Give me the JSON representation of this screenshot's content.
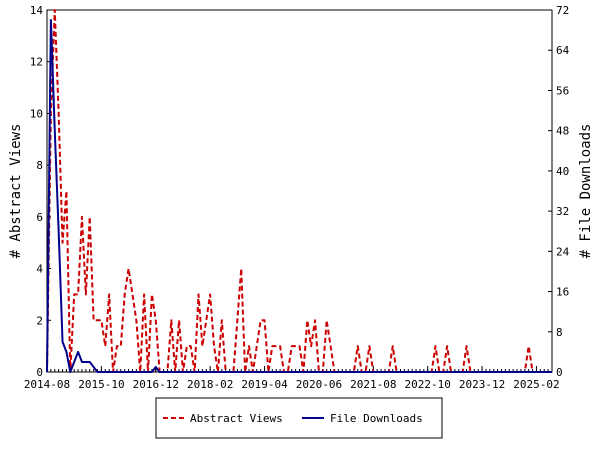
{
  "chart_data": {
    "type": "line",
    "title": "",
    "ylabel": "# Abstract Views",
    "y2label": "# File Downloads",
    "xlabel": "",
    "ylim": [
      0,
      14
    ],
    "y2lim": [
      0,
      72
    ],
    "yticks": [
      0,
      2,
      4,
      6,
      8,
      10,
      12,
      14
    ],
    "y2ticks": [
      0,
      8,
      16,
      24,
      32,
      40,
      48,
      56,
      64,
      72
    ],
    "xlim": [
      "2014-08",
      "2025-06"
    ],
    "xticks": [
      "2014-08",
      "2015-10",
      "2016-12",
      "2018-02",
      "2019-04",
      "2020-06",
      "2021-08",
      "2022-10",
      "2023-12",
      "2025-02"
    ],
    "legend_position": "bottom",
    "grid": false,
    "colors": {
      "abstract_views": "#cc0000",
      "file_downloads": "#00008b"
    },
    "series": [
      {
        "name": "Abstract Views",
        "axis": "left",
        "style": "dashed",
        "points": [
          [
            "2014-08",
            0
          ],
          [
            "2014-09",
            10
          ],
          [
            "2014-10",
            14
          ],
          [
            "2014-11",
            10
          ],
          [
            "2014-12",
            5
          ],
          [
            "2015-01",
            7
          ],
          [
            "2015-02",
            0
          ],
          [
            "2015-03",
            3
          ],
          [
            "2015-04",
            3
          ],
          [
            "2015-05",
            6
          ],
          [
            "2015-06",
            3
          ],
          [
            "2015-07",
            6
          ],
          [
            "2015-08",
            2
          ],
          [
            "2015-09",
            2
          ],
          [
            "2015-10",
            2
          ],
          [
            "2015-11",
            1
          ],
          [
            "2015-12",
            3
          ],
          [
            "2016-01",
            0
          ],
          [
            "2016-02",
            1
          ],
          [
            "2016-03",
            1
          ],
          [
            "2016-04",
            3
          ],
          [
            "2016-05",
            4
          ],
          [
            "2016-06",
            3
          ],
          [
            "2016-07",
            2
          ],
          [
            "2016-08",
            0
          ],
          [
            "2016-09",
            3
          ],
          [
            "2016-10",
            0
          ],
          [
            "2016-11",
            3
          ],
          [
            "2016-12",
            2
          ],
          [
            "2017-01",
            0
          ],
          [
            "2017-02",
            0
          ],
          [
            "2017-03",
            0
          ],
          [
            "2017-04",
            2
          ],
          [
            "2017-05",
            0
          ],
          [
            "2017-06",
            2
          ],
          [
            "2017-07",
            0
          ],
          [
            "2017-08",
            1
          ],
          [
            "2017-09",
            1
          ],
          [
            "2017-10",
            0
          ],
          [
            "2017-11",
            3
          ],
          [
            "2017-12",
            1
          ],
          [
            "2018-01",
            2
          ],
          [
            "2018-02",
            3
          ],
          [
            "2018-03",
            1
          ],
          [
            "2018-04",
            0
          ],
          [
            "2018-05",
            2
          ],
          [
            "2018-06",
            0
          ],
          [
            "2018-07",
            0
          ],
          [
            "2018-08",
            0
          ],
          [
            "2018-09",
            2
          ],
          [
            "2018-10",
            4
          ],
          [
            "2018-11",
            0
          ],
          [
            "2018-12",
            1
          ],
          [
            "2019-01",
            0
          ],
          [
            "2019-02",
            1
          ],
          [
            "2019-03",
            2
          ],
          [
            "2019-04",
            2
          ],
          [
            "2019-05",
            0
          ],
          [
            "2019-06",
            1
          ],
          [
            "2019-07",
            1
          ],
          [
            "2019-08",
            1
          ],
          [
            "2019-09",
            0
          ],
          [
            "2019-10",
            0
          ],
          [
            "2019-11",
            1
          ],
          [
            "2019-12",
            1
          ],
          [
            "2020-01",
            1
          ],
          [
            "2020-02",
            0
          ],
          [
            "2020-03",
            2
          ],
          [
            "2020-04",
            1
          ],
          [
            "2020-05",
            2
          ],
          [
            "2020-06",
            0
          ],
          [
            "2020-07",
            0
          ],
          [
            "2020-08",
            2
          ],
          [
            "2020-09",
            1
          ],
          [
            "2020-10",
            0
          ],
          [
            "2020-11",
            0
          ],
          [
            "2020-12",
            0
          ],
          [
            "2021-01",
            0
          ],
          [
            "2021-02",
            0
          ],
          [
            "2021-03",
            0
          ],
          [
            "2021-04",
            1
          ],
          [
            "2021-05",
            0
          ],
          [
            "2021-06",
            0
          ],
          [
            "2021-07",
            1
          ],
          [
            "2021-08",
            0
          ],
          [
            "2021-09",
            0
          ],
          [
            "2021-10",
            0
          ],
          [
            "2021-11",
            0
          ],
          [
            "2021-12",
            0
          ],
          [
            "2022-01",
            1
          ],
          [
            "2022-02",
            0
          ],
          [
            "2022-03",
            0
          ],
          [
            "2022-04",
            0
          ],
          [
            "2022-05",
            0
          ],
          [
            "2022-06",
            0
          ],
          [
            "2022-07",
            0
          ],
          [
            "2022-08",
            0
          ],
          [
            "2022-09",
            0
          ],
          [
            "2022-10",
            0
          ],
          [
            "2022-11",
            0
          ],
          [
            "2022-12",
            1
          ],
          [
            "2023-01",
            0
          ],
          [
            "2023-02",
            0
          ],
          [
            "2023-03",
            1
          ],
          [
            "2023-04",
            0
          ],
          [
            "2023-05",
            0
          ],
          [
            "2023-06",
            0
          ],
          [
            "2023-07",
            0
          ],
          [
            "2023-08",
            1
          ],
          [
            "2023-09",
            0
          ],
          [
            "2023-10",
            0
          ],
          [
            "2023-11",
            0
          ],
          [
            "2023-12",
            0
          ],
          [
            "2024-01",
            0
          ],
          [
            "2024-02",
            0
          ],
          [
            "2024-03",
            0
          ],
          [
            "2024-04",
            0
          ],
          [
            "2024-05",
            0
          ],
          [
            "2024-06",
            0
          ],
          [
            "2024-07",
            0
          ],
          [
            "2024-08",
            0
          ],
          [
            "2024-09",
            0
          ],
          [
            "2024-10",
            0
          ],
          [
            "2024-11",
            0
          ],
          [
            "2024-12",
            1
          ],
          [
            "2025-01",
            0
          ],
          [
            "2025-02",
            0
          ],
          [
            "2025-03",
            0
          ],
          [
            "2025-04",
            0
          ],
          [
            "2025-05",
            0
          ],
          [
            "2025-06",
            0
          ]
        ]
      },
      {
        "name": "File Downloads",
        "axis": "right",
        "style": "solid",
        "points": [
          [
            "2014-08",
            0
          ],
          [
            "2014-09",
            70
          ],
          [
            "2014-10",
            48
          ],
          [
            "2014-11",
            28
          ],
          [
            "2014-12",
            6
          ],
          [
            "2015-01",
            4
          ],
          [
            "2015-02",
            0
          ],
          [
            "2015-03",
            2
          ],
          [
            "2015-04",
            4
          ],
          [
            "2015-05",
            2
          ],
          [
            "2015-06",
            2
          ],
          [
            "2015-07",
            2
          ],
          [
            "2015-08",
            1
          ],
          [
            "2015-09",
            0
          ],
          [
            "2015-10",
            0
          ],
          [
            "2015-11",
            0
          ],
          [
            "2015-12",
            0
          ],
          [
            "2016-01",
            0
          ],
          [
            "2016-02",
            0
          ],
          [
            "2016-03",
            0
          ],
          [
            "2016-04",
            0
          ],
          [
            "2016-05",
            0
          ],
          [
            "2016-06",
            0
          ],
          [
            "2016-07",
            0
          ],
          [
            "2016-08",
            0
          ],
          [
            "2016-09",
            0
          ],
          [
            "2016-10",
            0
          ],
          [
            "2016-11",
            0
          ],
          [
            "2016-12",
            1
          ],
          [
            "2017-01",
            0
          ],
          [
            "2017-02",
            0
          ],
          [
            "2025-06",
            0
          ]
        ]
      }
    ]
  }
}
